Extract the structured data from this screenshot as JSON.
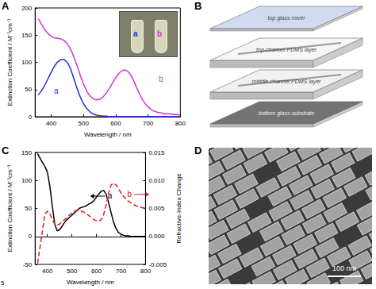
{
  "chart_data": [
    {
      "panel": "A",
      "type": "line",
      "x_label": "Wavelength / nm",
      "y_label": "Extinction Coefficient / M⁻¹cm⁻¹",
      "x": [
        360,
        370,
        380,
        390,
        400,
        410,
        420,
        430,
        440,
        450,
        460,
        470,
        480,
        490,
        500,
        510,
        520,
        530,
        540,
        550,
        560,
        570,
        580,
        590,
        600,
        610,
        620,
        630,
        640,
        650,
        660,
        670,
        680,
        690,
        700,
        710,
        720,
        730,
        740,
        750,
        760,
        770,
        780,
        790,
        800
      ],
      "xlim": [
        350,
        800
      ],
      "xticks": [
        400,
        500,
        600,
        700,
        800
      ],
      "ylim": [
        0,
        200
      ],
      "yticks": [
        0,
        50,
        100,
        150,
        200
      ],
      "grid": false,
      "series": [
        {
          "color": "#2b2bd9",
          "line_style": "solid",
          "values": [
            40,
            48,
            58,
            70,
            82,
            93,
            101,
            105,
            105,
            100,
            88,
            70,
            52,
            36,
            24,
            15,
            9,
            5,
            3,
            2,
            1,
            1,
            0,
            0,
            0,
            0,
            0,
            0,
            0,
            0,
            0,
            0,
            0,
            0,
            0,
            0,
            0,
            0,
            0,
            0,
            0,
            0,
            0,
            0,
            0
          ]
        },
        {
          "color": "#d633d6",
          "line_style": "solid",
          "values": [
            180,
            170,
            160,
            153,
            148,
            145,
            144,
            143,
            140,
            134,
            124,
            110,
            94,
            76,
            60,
            47,
            38,
            33,
            31,
            32,
            36,
            43,
            52,
            62,
            72,
            80,
            85,
            86,
            82,
            73,
            60,
            46,
            34,
            25,
            18,
            13,
            10,
            8,
            7,
            6,
            5,
            5,
            4,
            4,
            3
          ]
        }
      ],
      "annotations": [
        {
          "text": "a",
          "x": 415,
          "y": 48,
          "color": "#2b2bd9"
        },
        {
          "text": "b",
          "x": 740,
          "y": 70,
          "color": "#d633d6"
        }
      ],
      "inset": {
        "labels": [
          {
            "text": "a",
            "color": "#2b2bd9"
          },
          {
            "text": "b",
            "color": "#d633d6"
          }
        ]
      }
    },
    {
      "panel": "C",
      "type": "line",
      "x_label": "Wavelength / nm",
      "y_label": "Extinction Coefficient / M⁻¹cm⁻¹",
      "y2_label": "Refractive-Index Change",
      "x": [
        360,
        370,
        380,
        390,
        400,
        410,
        420,
        430,
        440,
        450,
        460,
        470,
        480,
        490,
        500,
        510,
        520,
        530,
        540,
        550,
        560,
        570,
        580,
        590,
        600,
        610,
        620,
        630,
        640,
        650,
        660,
        670,
        680,
        690,
        700,
        710,
        720,
        730,
        740,
        750,
        760,
        770,
        780,
        790,
        800
      ],
      "xlim": [
        350,
        800
      ],
      "xticks": [
        400,
        500,
        600,
        700,
        800
      ],
      "ylim": [
        -50,
        150
      ],
      "yticks": [
        -50,
        0,
        50,
        100,
        150
      ],
      "y2lim": [
        -0.005,
        0.015
      ],
      "y2ticks": [
        -0.005,
        {
          "value": 0,
          "label": "0.000"
        },
        0.005,
        {
          "value": 0.01,
          "label": "0.010"
        },
        0.015
      ],
      "grid": false,
      "series": [
        {
          "color": "#000000",
          "line_style": "solid",
          "values": [
            148,
            140,
            132,
            125,
            115,
            90,
            55,
            22,
            10,
            12,
            18,
            25,
            30,
            34,
            38,
            42,
            46,
            50,
            52,
            53,
            55,
            58,
            60,
            64,
            70,
            76,
            81,
            82,
            75,
            60,
            42,
            25,
            14,
            7,
            4,
            2,
            1,
            1,
            0,
            0,
            0,
            0,
            0,
            0,
            0
          ]
        },
        {
          "color": "#e02020",
          "line_style": "dashed",
          "axis": "y2",
          "values": [
            -0.0048,
            -0.002,
            0.001,
            0.004,
            0.0045,
            0.004,
            0.003,
            0.0022,
            0.002,
            0.0022,
            0.0026,
            0.003,
            0.0034,
            0.0038,
            0.0042,
            0.0045,
            0.0046,
            0.0046,
            0.0045,
            0.0043,
            0.004,
            0.0037,
            0.0033,
            0.003,
            0.0028,
            0.0027,
            0.003,
            0.004,
            0.0058,
            0.0078,
            0.0092,
            0.0095,
            0.0092,
            0.0085,
            0.0078,
            0.0072,
            0.0067,
            0.0063,
            0.006,
            0.0057,
            0.0055,
            0.0053,
            0.0052,
            0.0051,
            0.005
          ]
        }
      ],
      "annotations": [
        {
          "text": "a",
          "x": 655,
          "y": 72,
          "color": "#000000"
        },
        {
          "text": "b",
          "x": 735,
          "y": 0.0075,
          "color": "#e02020",
          "axis": "y2"
        }
      ]
    }
  ],
  "diagram": {
    "panel": "B",
    "layers": [
      "top glass cover",
      "top-channel PDMS layer",
      "middle-channel PDMS layer",
      "bottom glass substrate"
    ]
  },
  "image": {
    "panel": "D",
    "scale_bar": "100 nm"
  },
  "page_mark": "5"
}
